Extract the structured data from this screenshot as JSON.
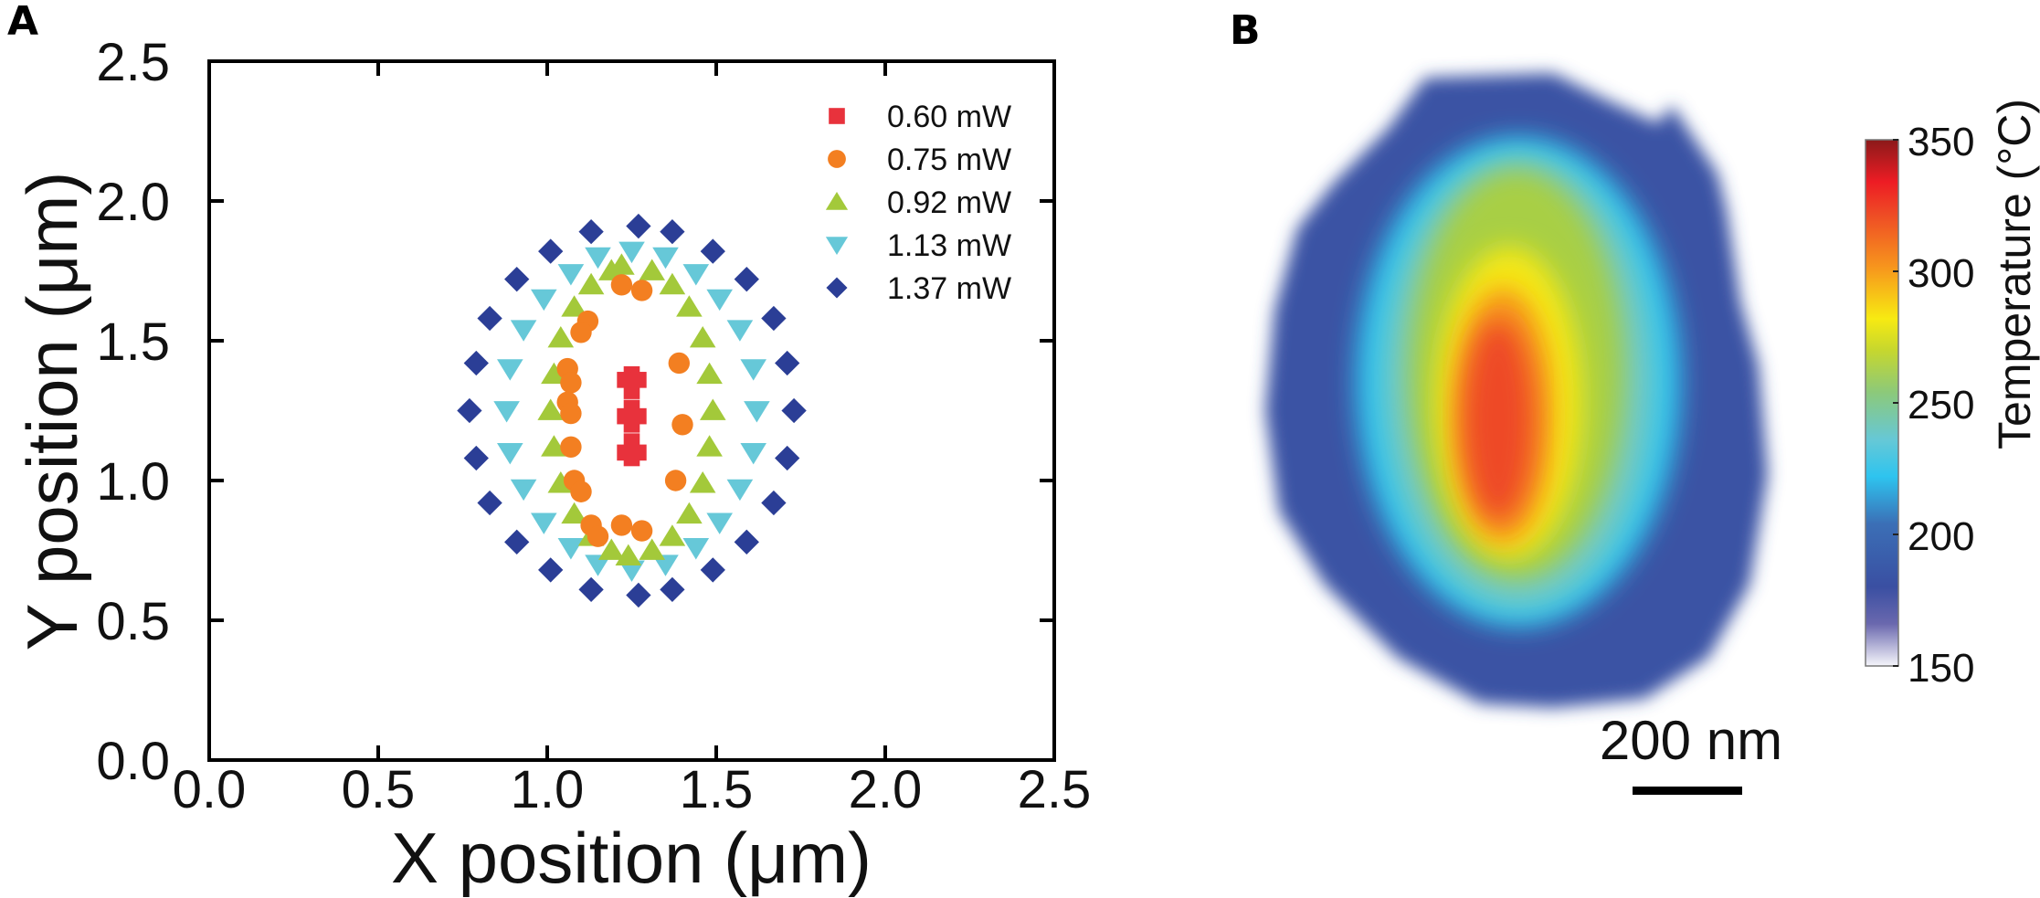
{
  "chart_data": [
    {
      "panel": "A",
      "type": "scatter",
      "xlabel": "X position (μm)",
      "ylabel": "Y position (μm)",
      "xlim": [
        0.0,
        2.5
      ],
      "ylim": [
        0.0,
        2.5
      ],
      "xticks": [
        "0.0",
        "0.5",
        "1.0",
        "1.5",
        "2.0",
        "2.5"
      ],
      "yticks": [
        "0.0",
        "0.5",
        "1.0",
        "1.5",
        "2.0",
        "2.5"
      ],
      "grid": false,
      "legend_position": "top-right",
      "series": [
        {
          "name": "0.60 mW",
          "marker": "square",
          "color": "#e8323c",
          "points": [
            [
              1.25,
              1.08
            ],
            [
              1.25,
              1.14
            ],
            [
              1.25,
              1.2
            ],
            [
              1.25,
              1.26
            ],
            [
              1.25,
              1.32
            ],
            [
              1.25,
              1.38
            ],
            [
              1.23,
              1.1
            ],
            [
              1.27,
              1.1
            ],
            [
              1.23,
              1.36
            ],
            [
              1.27,
              1.36
            ],
            [
              1.23,
              1.23
            ],
            [
              1.27,
              1.23
            ]
          ]
        },
        {
          "name": "0.75 mW",
          "marker": "circle",
          "color": "#f37f21",
          "points": [
            [
              1.22,
              1.7
            ],
            [
              1.28,
              1.68
            ],
            [
              1.12,
              1.57
            ],
            [
              1.1,
              1.53
            ],
            [
              1.06,
              1.4
            ],
            [
              1.07,
              1.35
            ],
            [
              1.06,
              1.28
            ],
            [
              1.07,
              1.24
            ],
            [
              1.07,
              1.12
            ],
            [
              1.08,
              1.0
            ],
            [
              1.1,
              0.96
            ],
            [
              1.13,
              0.84
            ],
            [
              1.15,
              0.8
            ],
            [
              1.22,
              0.84
            ],
            [
              1.28,
              0.82
            ],
            [
              1.39,
              1.42
            ],
            [
              1.4,
              1.2
            ],
            [
              1.38,
              1.0
            ]
          ]
        },
        {
          "name": "0.92 mW",
          "marker": "triangle-up",
          "color": "#a3c93a",
          "points": [
            [
              1.49,
              1.25
            ],
            [
              1.48,
              1.38
            ],
            [
              1.46,
              1.51
            ],
            [
              1.42,
              1.62
            ],
            [
              1.37,
              1.7
            ],
            [
              1.31,
              1.75
            ],
            [
              1.22,
              1.77
            ],
            [
              1.19,
              1.75
            ],
            [
              1.13,
              1.7
            ],
            [
              1.08,
              1.62
            ],
            [
              1.04,
              1.51
            ],
            [
              1.02,
              1.38
            ],
            [
              1.01,
              1.25
            ],
            [
              1.02,
              1.12
            ],
            [
              1.04,
              0.99
            ],
            [
              1.08,
              0.88
            ],
            [
              1.13,
              0.8
            ],
            [
              1.19,
              0.75
            ],
            [
              1.24,
              0.73
            ],
            [
              1.31,
              0.75
            ],
            [
              1.37,
              0.8
            ],
            [
              1.42,
              0.88
            ],
            [
              1.46,
              0.99
            ],
            [
              1.48,
              1.12
            ]
          ]
        },
        {
          "name": "1.13 mW",
          "marker": "triangle-down",
          "color": "#66c8d8",
          "points": [
            [
              1.62,
              1.25
            ],
            [
              1.61,
              1.4
            ],
            [
              1.57,
              1.54
            ],
            [
              1.51,
              1.65
            ],
            [
              1.44,
              1.74
            ],
            [
              1.35,
              1.8
            ],
            [
              1.25,
              1.82
            ],
            [
              1.15,
              1.8
            ],
            [
              1.07,
              1.74
            ],
            [
              0.99,
              1.65
            ],
            [
              0.93,
              1.54
            ],
            [
              0.89,
              1.4
            ],
            [
              0.88,
              1.25
            ],
            [
              0.89,
              1.1
            ],
            [
              0.93,
              0.97
            ],
            [
              0.99,
              0.85
            ],
            [
              1.07,
              0.76
            ],
            [
              1.15,
              0.7
            ],
            [
              1.25,
              0.68
            ],
            [
              1.35,
              0.7
            ],
            [
              1.44,
              0.76
            ],
            [
              1.51,
              0.85
            ],
            [
              1.57,
              0.97
            ],
            [
              1.61,
              1.1
            ]
          ]
        },
        {
          "name": "1.37 mW",
          "marker": "diamond",
          "color": "#2b3e96",
          "points": [
            [
              1.73,
              1.25
            ],
            [
              1.71,
              1.42
            ],
            [
              1.67,
              1.58
            ],
            [
              1.59,
              1.72
            ],
            [
              1.49,
              1.82
            ],
            [
              1.37,
              1.89
            ],
            [
              1.27,
              1.91
            ],
            [
              1.13,
              1.89
            ],
            [
              1.01,
              1.82
            ],
            [
              0.91,
              1.72
            ],
            [
              0.83,
              1.58
            ],
            [
              0.79,
              1.42
            ],
            [
              0.77,
              1.25
            ],
            [
              0.79,
              1.08
            ],
            [
              0.83,
              0.92
            ],
            [
              0.91,
              0.78
            ],
            [
              1.01,
              0.68
            ],
            [
              1.13,
              0.61
            ],
            [
              1.27,
              0.59
            ],
            [
              1.37,
              0.61
            ],
            [
              1.49,
              0.68
            ],
            [
              1.59,
              0.78
            ],
            [
              1.67,
              0.92
            ],
            [
              1.71,
              1.08
            ]
          ]
        }
      ]
    },
    {
      "panel": "B",
      "type": "heatmap",
      "colorbar": {
        "label": "Temperature (°C)",
        "range": [
          150,
          350
        ],
        "ticks": [
          "150",
          "200",
          "250",
          "300",
          "350"
        ],
        "tick_values": [
          150,
          200,
          250,
          300,
          350
        ]
      },
      "peak_value": 330,
      "scale_bar": "200 nm"
    }
  ],
  "panels": {
    "a_label": "A",
    "b_label": "B"
  }
}
